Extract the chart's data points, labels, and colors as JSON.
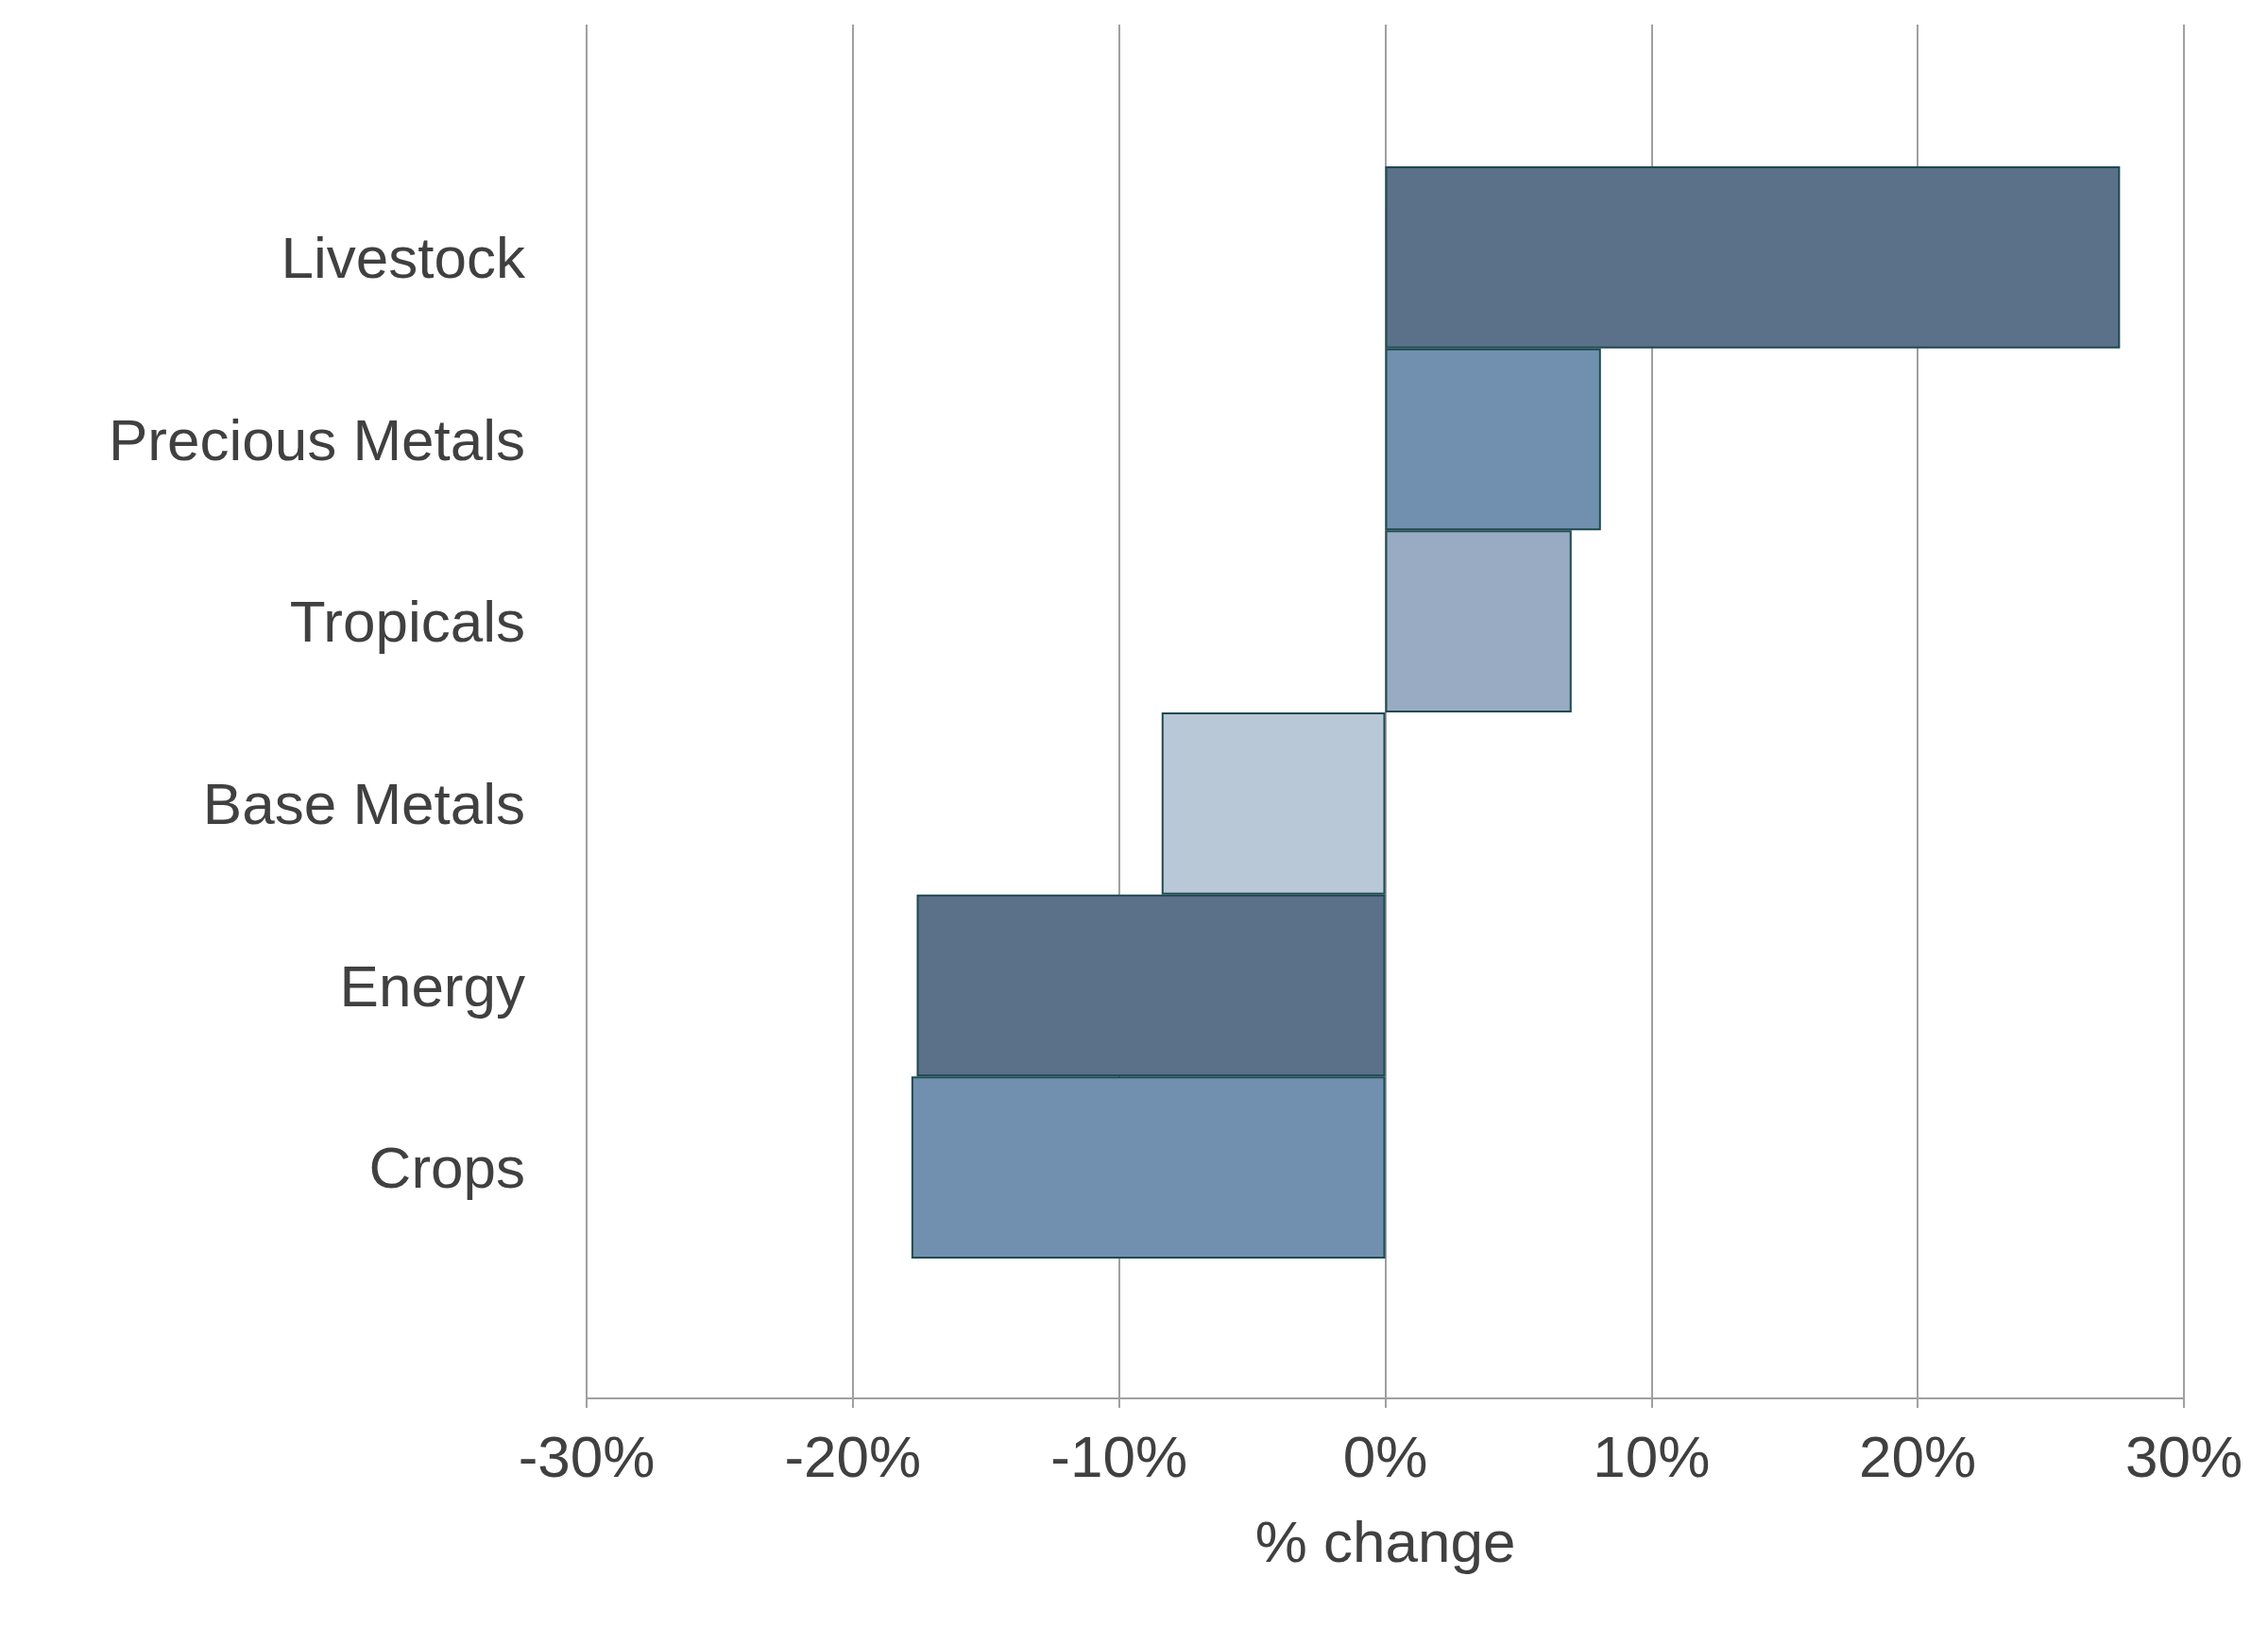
{
  "chart_data": {
    "type": "bar",
    "orientation": "horizontal",
    "xlabel": "% change",
    "categories": [
      "Livestock",
      "Precious Metals",
      "Tropicals",
      "Base Metals",
      "Energy",
      "Crops"
    ],
    "values": [
      27.6,
      8.1,
      7.0,
      -8.4,
      -17.6,
      -17.8
    ],
    "colors": [
      "#5b7089",
      "#7190b0",
      "#98abc3",
      "#b9c8d7",
      "#5b7089",
      "#7190b0"
    ],
    "xlim": [
      -30,
      30
    ],
    "xticks": [
      {
        "value": -30,
        "label": "-30%"
      },
      {
        "value": -20,
        "label": "-20%"
      },
      {
        "value": -10,
        "label": "-10%"
      },
      {
        "value": 0,
        "label": "0%"
      },
      {
        "value": 10,
        "label": "10%"
      },
      {
        "value": 20,
        "label": "20%"
      },
      {
        "value": 30,
        "label": "30%"
      }
    ],
    "grid": "x"
  }
}
